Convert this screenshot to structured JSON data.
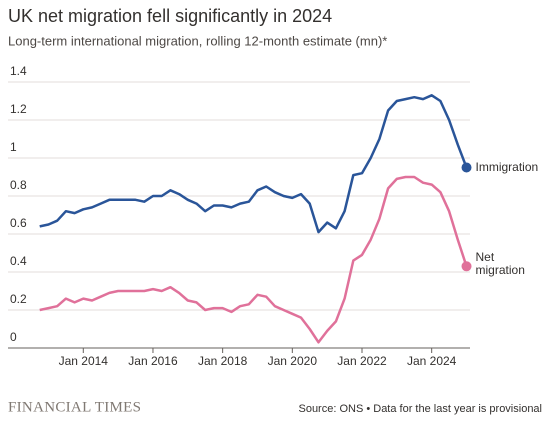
{
  "chart_data": {
    "type": "line",
    "title": "UK net migration fell significantly in 2024",
    "subtitle": "Long-term international migration, rolling 12-month estimate (mn)*",
    "source": "Source: ONS • Data for the last year is provisional",
    "brand": "FINANCIAL TIMES",
    "x": [
      2012.75,
      2013,
      2013.25,
      2013.5,
      2013.75,
      2014,
      2014.25,
      2014.5,
      2014.75,
      2015,
      2015.25,
      2015.5,
      2015.75,
      2016,
      2016.25,
      2016.5,
      2016.75,
      2017,
      2017.25,
      2017.5,
      2017.75,
      2018,
      2018.25,
      2018.5,
      2018.75,
      2019,
      2019.25,
      2019.5,
      2019.75,
      2020,
      2020.25,
      2020.5,
      2020.75,
      2021,
      2021.25,
      2021.5,
      2021.75,
      2022,
      2022.25,
      2022.5,
      2022.75,
      2023,
      2023.25,
      2023.5,
      2023.75,
      2024,
      2024.25,
      2024.5,
      2024.75,
      2025
    ],
    "series": [
      {
        "name": "Immigration",
        "color": "#2a5599",
        "values": [
          0.64,
          0.65,
          0.67,
          0.72,
          0.71,
          0.73,
          0.74,
          0.76,
          0.78,
          0.78,
          0.78,
          0.78,
          0.77,
          0.8,
          0.8,
          0.83,
          0.81,
          0.78,
          0.76,
          0.72,
          0.75,
          0.75,
          0.74,
          0.76,
          0.77,
          0.83,
          0.85,
          0.82,
          0.8,
          0.79,
          0.81,
          0.76,
          0.61,
          0.66,
          0.63,
          0.72,
          0.91,
          0.92,
          1.0,
          1.1,
          1.25,
          1.3,
          1.31,
          1.32,
          1.31,
          1.33,
          1.3,
          1.2,
          1.07,
          0.95
        ]
      },
      {
        "name": "Net migration",
        "color": "#e0719a",
        "values": [
          0.2,
          0.21,
          0.22,
          0.26,
          0.24,
          0.26,
          0.25,
          0.27,
          0.29,
          0.3,
          0.3,
          0.3,
          0.3,
          0.31,
          0.3,
          0.32,
          0.29,
          0.25,
          0.24,
          0.2,
          0.21,
          0.21,
          0.19,
          0.22,
          0.23,
          0.28,
          0.27,
          0.22,
          0.2,
          0.18,
          0.16,
          0.1,
          0.03,
          0.09,
          0.14,
          0.26,
          0.46,
          0.49,
          0.57,
          0.68,
          0.84,
          0.89,
          0.9,
          0.9,
          0.87,
          0.86,
          0.82,
          0.72,
          0.57,
          0.43
        ]
      }
    ],
    "xlim": [
      2012.7,
      2025.1
    ],
    "xticks": [
      {
        "value": 2014,
        "label": "Jan 2014"
      },
      {
        "value": 2016,
        "label": "Jan 2016"
      },
      {
        "value": 2018,
        "label": "Jan 2018"
      },
      {
        "value": 2020,
        "label": "Jan 2020"
      },
      {
        "value": 2022,
        "label": "Jan 2022"
      },
      {
        "value": 2024,
        "label": "Jan 2024"
      }
    ],
    "ylim": [
      0,
      1.4
    ],
    "yticks": [
      0,
      0.2,
      0.4,
      0.6,
      0.8,
      1,
      1.2,
      1.4
    ],
    "grid": true
  }
}
